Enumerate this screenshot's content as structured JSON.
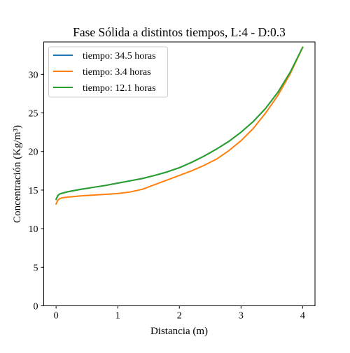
{
  "chart_data": {
    "type": "line",
    "title": "Fase Sólida a distintos tiempos, L:4 - D:0.3",
    "xlabel": "Distancia (m)",
    "ylabel": "Concentración (Kg/m³)",
    "xlim": [
      -0.2,
      4.2
    ],
    "ylim": [
      0,
      34.2
    ],
    "xticks": [
      0,
      1,
      2,
      3,
      4
    ],
    "yticks": [
      0,
      5,
      10,
      15,
      20,
      25,
      30
    ],
    "grid": false,
    "legend_position": "upper-left",
    "series": [
      {
        "name": "tiempo: 34.5 horas",
        "color": "#1f77b4",
        "x": [
          0.0,
          0.03,
          0.06,
          0.1,
          0.2,
          0.4,
          0.6,
          0.8,
          1.0,
          1.2,
          1.4,
          1.6,
          1.8,
          2.0,
          2.2,
          2.4,
          2.6,
          2.8,
          3.0,
          3.2,
          3.4,
          3.6,
          3.8,
          4.0
        ],
        "y": [
          13.8,
          14.3,
          14.5,
          14.6,
          14.8,
          15.1,
          15.35,
          15.6,
          15.9,
          16.2,
          16.5,
          16.9,
          17.35,
          17.9,
          18.6,
          19.4,
          20.3,
          21.3,
          22.5,
          23.9,
          25.6,
          27.7,
          30.3,
          33.5
        ]
      },
      {
        "name": "tiempo: 3.4 horas",
        "color": "#ff7f0e",
        "x": [
          0.0,
          0.03,
          0.06,
          0.1,
          0.2,
          0.4,
          0.6,
          0.8,
          1.0,
          1.2,
          1.4,
          1.6,
          1.8,
          2.0,
          2.2,
          2.4,
          2.6,
          2.8,
          3.0,
          3.2,
          3.4,
          3.6,
          3.8,
          4.0
        ],
        "y": [
          13.2,
          13.7,
          13.9,
          14.0,
          14.1,
          14.25,
          14.35,
          14.45,
          14.55,
          14.75,
          15.1,
          15.7,
          16.3,
          16.9,
          17.5,
          18.2,
          19.0,
          20.1,
          21.4,
          23.0,
          25.0,
          27.3,
          30.1,
          33.5
        ]
      },
      {
        "name": "tiempo: 12.1 horas",
        "color": "#2ca02c",
        "x": [
          0.0,
          0.03,
          0.06,
          0.1,
          0.2,
          0.4,
          0.6,
          0.8,
          1.0,
          1.2,
          1.4,
          1.6,
          1.8,
          2.0,
          2.2,
          2.4,
          2.6,
          2.8,
          3.0,
          3.2,
          3.4,
          3.6,
          3.8,
          4.0
        ],
        "y": [
          13.8,
          14.3,
          14.5,
          14.6,
          14.8,
          15.1,
          15.35,
          15.6,
          15.9,
          16.2,
          16.5,
          16.9,
          17.35,
          17.9,
          18.6,
          19.4,
          20.3,
          21.3,
          22.5,
          23.9,
          25.6,
          27.7,
          30.3,
          33.5
        ]
      }
    ]
  }
}
